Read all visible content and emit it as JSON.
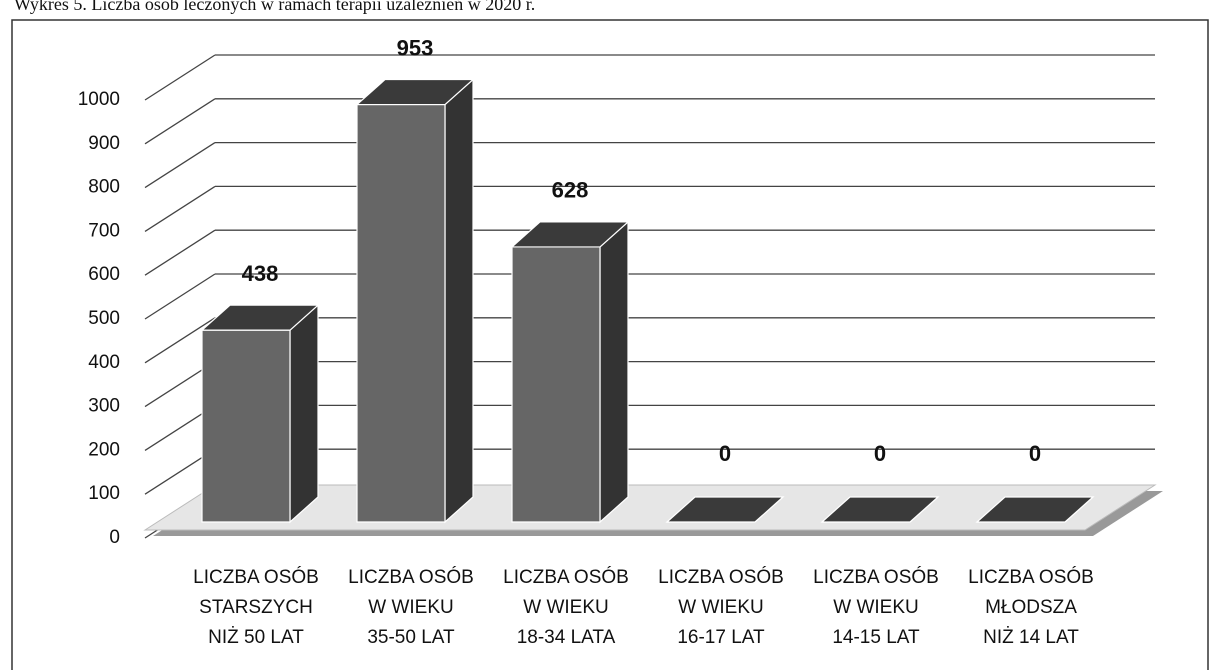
{
  "chart_data": {
    "type": "bar3d",
    "title": "Wykres 5. Liczba osób leczonych w ramach terapii uzależnień w 2020 r.",
    "categories": [
      [
        "LICZBA OSÓB",
        "STARSZYCH",
        "NIŻ 50 LAT"
      ],
      [
        "LICZBA OSÓB",
        "W WIEKU",
        "35-50 LAT"
      ],
      [
        "LICZBA OSÓB",
        "W WIEKU",
        "18-34 LATA"
      ],
      [
        "LICZBA OSÓB",
        "W WIEKU",
        "16-17 LAT"
      ],
      [
        "LICZBA OSÓB",
        "W WIEKU",
        "14-15 LAT"
      ],
      [
        "LICZBA OSÓB",
        "MŁODSZA",
        "NIŻ 14 LAT"
      ]
    ],
    "values": [
      438,
      953,
      628,
      0,
      0,
      0
    ],
    "color": "#666666",
    "ylim": [
      0,
      1000
    ],
    "yticks": [
      0,
      100,
      200,
      300,
      400,
      500,
      600,
      700,
      800,
      900,
      1000
    ],
    "grid": true
  }
}
